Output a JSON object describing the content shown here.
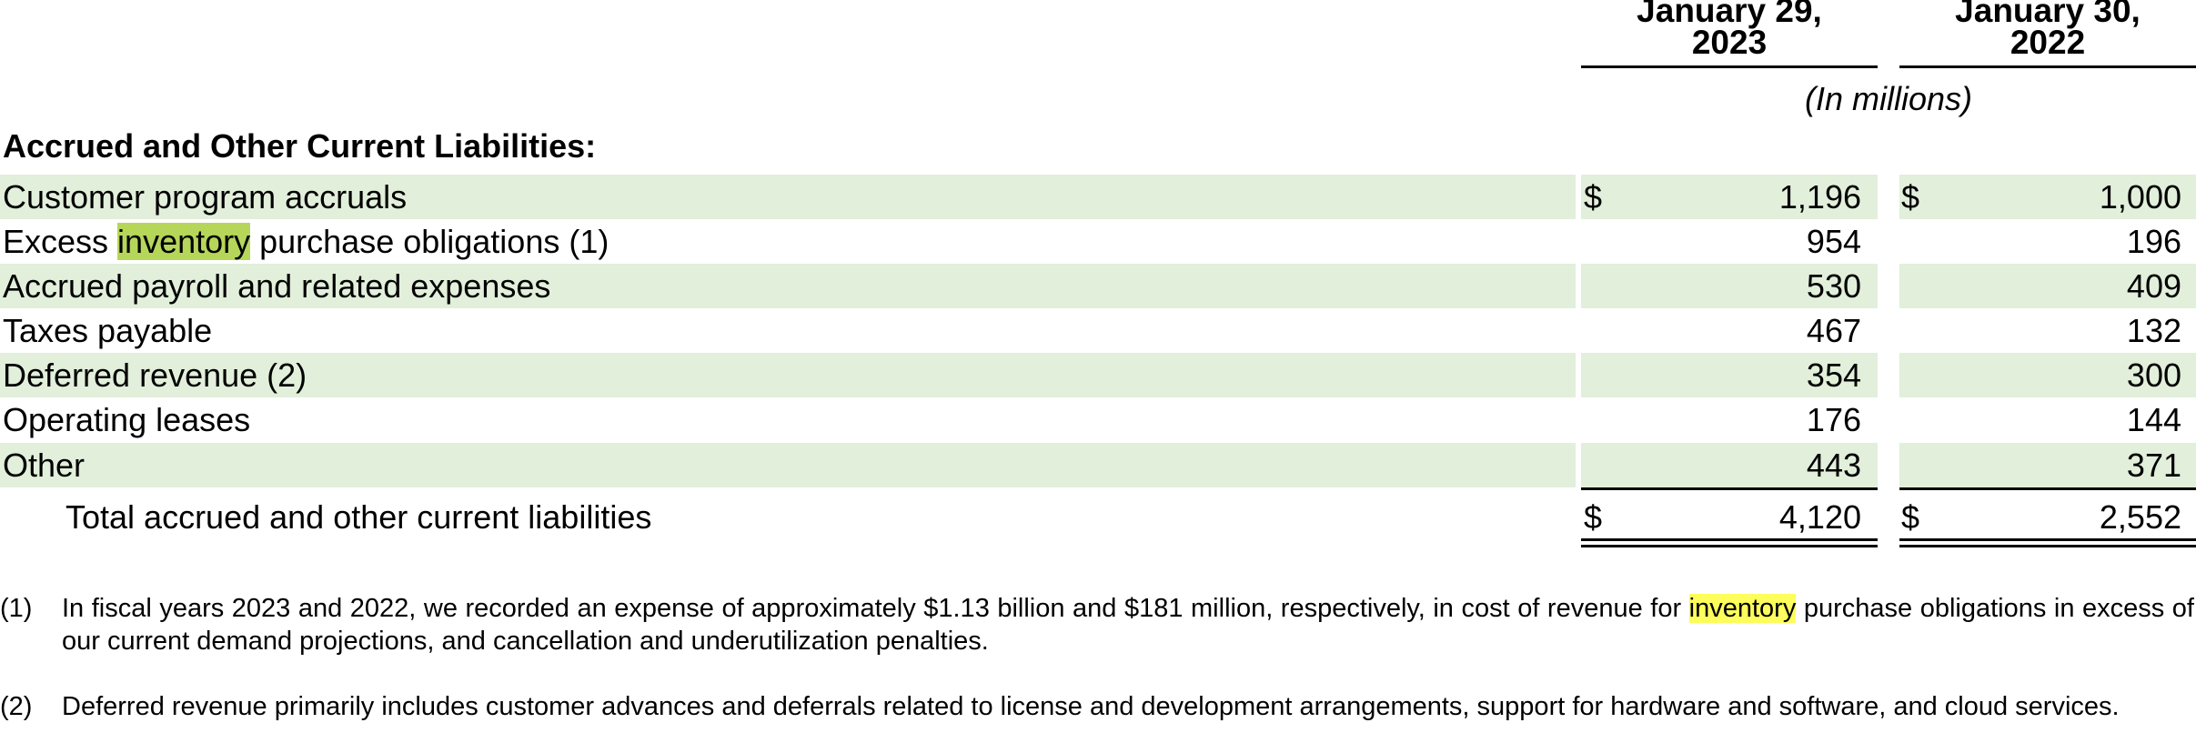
{
  "columns": [
    {
      "line1": "January 29,",
      "line2": "2023"
    },
    {
      "line1": "January 30,",
      "line2": "2022"
    }
  ],
  "units": "(In millions)",
  "section_title": "Accrued and Other Current Liabilities:",
  "rows": [
    {
      "label": "Customer program accruals",
      "dollar": "$",
      "v2023": "1,196",
      "v2022": "1,000"
    },
    {
      "label_pre": "Excess ",
      "label_hl": "inventory",
      "label_post": " purchase obligations (1)",
      "v2023": "954",
      "v2022": "196"
    },
    {
      "label": "Accrued payroll and related expenses",
      "v2023": "530",
      "v2022": "409"
    },
    {
      "label": "Taxes payable",
      "v2023": "467",
      "v2022": "132"
    },
    {
      "label": "Deferred revenue (2)",
      "v2023": "354",
      "v2022": "300"
    },
    {
      "label": "Operating leases",
      "v2023": "176",
      "v2022": "144"
    },
    {
      "label": "Other",
      "v2023": "443",
      "v2022": "371"
    }
  ],
  "total": {
    "label": "Total accrued and other current liabilities",
    "dollar": "$",
    "v2023": "4,120",
    "v2022": "2,552"
  },
  "footnotes": [
    {
      "mark": "(1)",
      "text_pre": "In fiscal years 2023 and 2022, we recorded an expense of approximately $1.13 billion and $181 million, respectively, in cost of revenue for ",
      "text_hl": "inventory",
      "text_post": " purchase obligations in excess of our current demand projections, and cancellation and underutilization penalties."
    },
    {
      "mark": "(2)",
      "text": "Deferred revenue primarily includes customer advances and deferrals related to license and development arrangements, support for hardware and software, and cloud services."
    }
  ],
  "colors": {
    "row_shade": "#e2efdb",
    "search_highlight_table": "#b6d65a",
    "search_highlight_footnote": "#fdfd5b"
  }
}
